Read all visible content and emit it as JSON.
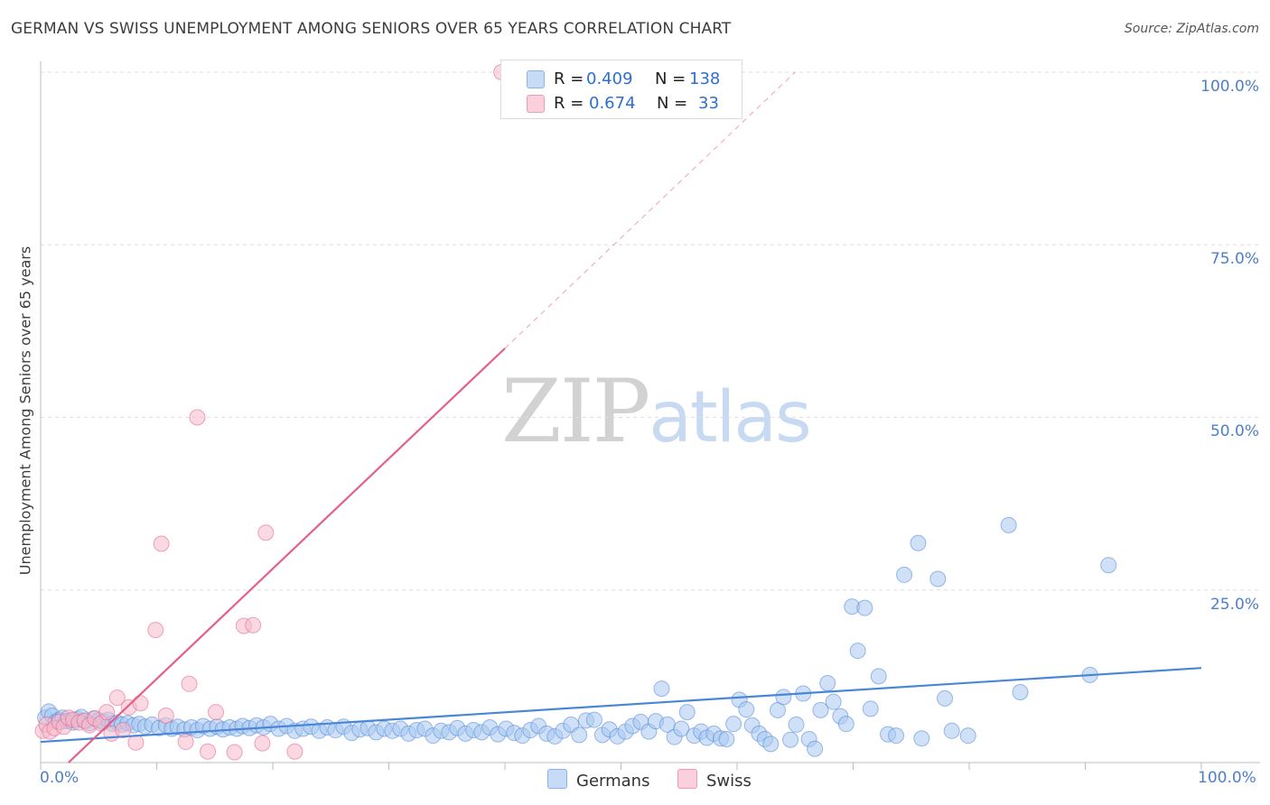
{
  "title": "GERMAN VS SWISS UNEMPLOYMENT AMONG SENIORS OVER 65 YEARS CORRELATION CHART",
  "source": "Source: ZipAtlas.com",
  "watermark": {
    "zip": "ZIP",
    "atlas": "atlas"
  },
  "stats_box": {
    "rows": [
      {
        "r_label": "R =",
        "r_value": "0.409",
        "n_label": "N =",
        "n_value": "138",
        "color": "#a9c8f0"
      },
      {
        "r_label": "R =",
        "r_value": "0.674",
        "n_label": "N =",
        "n_value": "33",
        "color": "#f6b9cb"
      }
    ]
  },
  "legend": [
    {
      "label": "Germans",
      "color": "#a9c8f0"
    },
    {
      "label": "Swiss",
      "color": "#f6b9cb"
    }
  ],
  "chart_data": {
    "type": "scatter",
    "title": "GERMAN VS SWISS UNEMPLOYMENT AMONG SENIORS OVER 65 YEARS CORRELATION CHART",
    "xlabel": "",
    "ylabel": "Unemployment Among Seniors over 65 years",
    "xlim": [
      0,
      100
    ],
    "ylim": [
      0,
      100
    ],
    "x_tick_labels": [
      "0.0%",
      "100.0%"
    ],
    "y_tick_labels": [
      "100.0%",
      "75.0%",
      "50.0%",
      "25.0%"
    ],
    "y_ticks": [
      100,
      75,
      50,
      25
    ],
    "grid": true,
    "legend_position": "bottom-center",
    "series": [
      {
        "name": "Germans",
        "color": "#4a86d8",
        "fill": "#a9c8f0",
        "trend": {
          "x": [
            0,
            100
          ],
          "y": [
            3.0,
            13.7
          ]
        },
        "points": [
          [
            0.4,
            6.5
          ],
          [
            0.7,
            7.4
          ],
          [
            1.0,
            6.8
          ],
          [
            1.3,
            5.9
          ],
          [
            1.6,
            6.2
          ],
          [
            1.9,
            6.5
          ],
          [
            2.2,
            6.0
          ],
          [
            2.5,
            6.1
          ],
          [
            2.8,
            5.8
          ],
          [
            3.2,
            6.3
          ],
          [
            3.5,
            6.6
          ],
          [
            3.8,
            6.0
          ],
          [
            4.2,
            5.7
          ],
          [
            4.6,
            6.4
          ],
          [
            5.0,
            6.1
          ],
          [
            5.4,
            5.9
          ],
          [
            5.8,
            6.2
          ],
          [
            6.2,
            5.6
          ],
          [
            6.6,
            5.8
          ],
          [
            7.0,
            5.5
          ],
          [
            7.5,
            5.7
          ],
          [
            8.0,
            5.4
          ],
          [
            8.5,
            5.6
          ],
          [
            9.0,
            5.2
          ],
          [
            9.6,
            5.5
          ],
          [
            10.2,
            5.0
          ],
          [
            10.8,
            5.4
          ],
          [
            11.3,
            4.9
          ],
          [
            11.8,
            5.2
          ],
          [
            12.4,
            4.8
          ],
          [
            13.0,
            5.1
          ],
          [
            13.5,
            4.7
          ],
          [
            14.0,
            5.3
          ],
          [
            14.6,
            4.9
          ],
          [
            15.2,
            5.2
          ],
          [
            15.7,
            4.8
          ],
          [
            16.3,
            5.1
          ],
          [
            16.9,
            4.9
          ],
          [
            17.4,
            5.3
          ],
          [
            18.0,
            5.0
          ],
          [
            18.6,
            5.4
          ],
          [
            19.2,
            5.1
          ],
          [
            19.8,
            5.6
          ],
          [
            20.5,
            4.9
          ],
          [
            21.2,
            5.3
          ],
          [
            21.9,
            4.6
          ],
          [
            22.6,
            4.9
          ],
          [
            23.3,
            5.2
          ],
          [
            24.0,
            4.6
          ],
          [
            24.7,
            5.1
          ],
          [
            25.4,
            4.7
          ],
          [
            26.1,
            5.2
          ],
          [
            26.8,
            4.3
          ],
          [
            27.5,
            4.8
          ],
          [
            28.2,
            5.0
          ],
          [
            28.9,
            4.4
          ],
          [
            29.6,
            4.9
          ],
          [
            30.3,
            4.6
          ],
          [
            31.0,
            4.9
          ],
          [
            31.7,
            4.2
          ],
          [
            32.4,
            4.7
          ],
          [
            33.1,
            4.9
          ],
          [
            33.8,
            3.9
          ],
          [
            34.5,
            4.6
          ],
          [
            35.2,
            4.4
          ],
          [
            35.9,
            5.0
          ],
          [
            36.6,
            4.2
          ],
          [
            37.3,
            4.7
          ],
          [
            38.0,
            4.4
          ],
          [
            38.7,
            5.1
          ],
          [
            39.4,
            4.1
          ],
          [
            40.1,
            4.9
          ],
          [
            40.8,
            4.3
          ],
          [
            41.5,
            3.9
          ],
          [
            42.2,
            4.7
          ],
          [
            42.9,
            5.3
          ],
          [
            43.6,
            4.2
          ],
          [
            44.3,
            3.8
          ],
          [
            45.0,
            4.6
          ],
          [
            45.7,
            5.5
          ],
          [
            46.4,
            4.0
          ],
          [
            47.0,
            6.1
          ],
          [
            47.7,
            6.2
          ],
          [
            48.4,
            4.0
          ],
          [
            49.0,
            4.8
          ],
          [
            49.7,
            3.8
          ],
          [
            50.4,
            4.5
          ],
          [
            51.0,
            5.3
          ],
          [
            51.7,
            5.9
          ],
          [
            52.4,
            4.5
          ],
          [
            53.0,
            6.0
          ],
          [
            53.5,
            10.7
          ],
          [
            54.0,
            5.5
          ],
          [
            54.6,
            3.7
          ],
          [
            55.2,
            4.9
          ],
          [
            55.7,
            7.3
          ],
          [
            56.3,
            3.9
          ],
          [
            56.9,
            4.5
          ],
          [
            57.4,
            3.6
          ],
          [
            58.0,
            4.2
          ],
          [
            58.6,
            3.5
          ],
          [
            59.1,
            3.4
          ],
          [
            59.7,
            5.6
          ],
          [
            60.2,
            9.1
          ],
          [
            60.8,
            7.7
          ],
          [
            61.3,
            5.4
          ],
          [
            61.9,
            4.2
          ],
          [
            62.4,
            3.4
          ],
          [
            62.9,
            2.7
          ],
          [
            63.5,
            7.6
          ],
          [
            64.0,
            9.5
          ],
          [
            64.6,
            3.3
          ],
          [
            65.1,
            5.5
          ],
          [
            65.7,
            10.0
          ],
          [
            66.2,
            3.4
          ],
          [
            66.7,
            2.0
          ],
          [
            67.2,
            7.6
          ],
          [
            67.8,
            11.5
          ],
          [
            68.3,
            8.8
          ],
          [
            68.9,
            6.7
          ],
          [
            69.4,
            5.6
          ],
          [
            69.9,
            22.6
          ],
          [
            70.4,
            16.2
          ],
          [
            71.0,
            22.4
          ],
          [
            71.5,
            7.8
          ],
          [
            72.2,
            12.5
          ],
          [
            73.0,
            4.1
          ],
          [
            73.7,
            3.9
          ],
          [
            74.4,
            27.2
          ],
          [
            75.6,
            31.8
          ],
          [
            75.9,
            3.5
          ],
          [
            77.3,
            26.6
          ],
          [
            77.9,
            9.3
          ],
          [
            78.5,
            4.6
          ],
          [
            79.9,
            3.9
          ],
          [
            83.4,
            34.4
          ],
          [
            84.4,
            10.2
          ],
          [
            90.4,
            12.7
          ],
          [
            92.0,
            28.6
          ]
        ]
      },
      {
        "name": "Swiss",
        "color": "#e45f8a",
        "fill": "#f6b9cb",
        "trend": {
          "x": [
            2.4,
            40.0
          ],
          "y": [
            0,
            60.0
          ]
        },
        "trend_extension": {
          "x": [
            40.0,
            65.0
          ],
          "y": [
            60.0,
            100.0
          ]
        },
        "points": [
          [
            0.2,
            4.6
          ],
          [
            0.5,
            5.5
          ],
          [
            0.8,
            4.5
          ],
          [
            1.2,
            5.0
          ],
          [
            1.6,
            5.9
          ],
          [
            2.0,
            5.2
          ],
          [
            2.4,
            6.5
          ],
          [
            2.8,
            6.2
          ],
          [
            3.3,
            5.8
          ],
          [
            3.8,
            6.1
          ],
          [
            4.2,
            5.4
          ],
          [
            4.7,
            6.4
          ],
          [
            5.2,
            5.7
          ],
          [
            5.7,
            7.3
          ],
          [
            6.1,
            4.2
          ],
          [
            6.6,
            9.4
          ],
          [
            7.1,
            4.7
          ],
          [
            7.6,
            8.0
          ],
          [
            8.2,
            2.9
          ],
          [
            8.6,
            8.6
          ],
          [
            9.9,
            19.2
          ],
          [
            10.4,
            31.7
          ],
          [
            10.8,
            6.8
          ],
          [
            12.5,
            3.0
          ],
          [
            12.8,
            11.4
          ],
          [
            13.5,
            50.0
          ],
          [
            14.4,
            1.6
          ],
          [
            15.1,
            7.3
          ],
          [
            16.7,
            1.5
          ],
          [
            17.5,
            19.8
          ],
          [
            18.3,
            19.9
          ],
          [
            19.1,
            2.8
          ],
          [
            19.4,
            33.3
          ],
          [
            21.9,
            1.6
          ],
          [
            39.7,
            100.0
          ]
        ]
      }
    ]
  }
}
